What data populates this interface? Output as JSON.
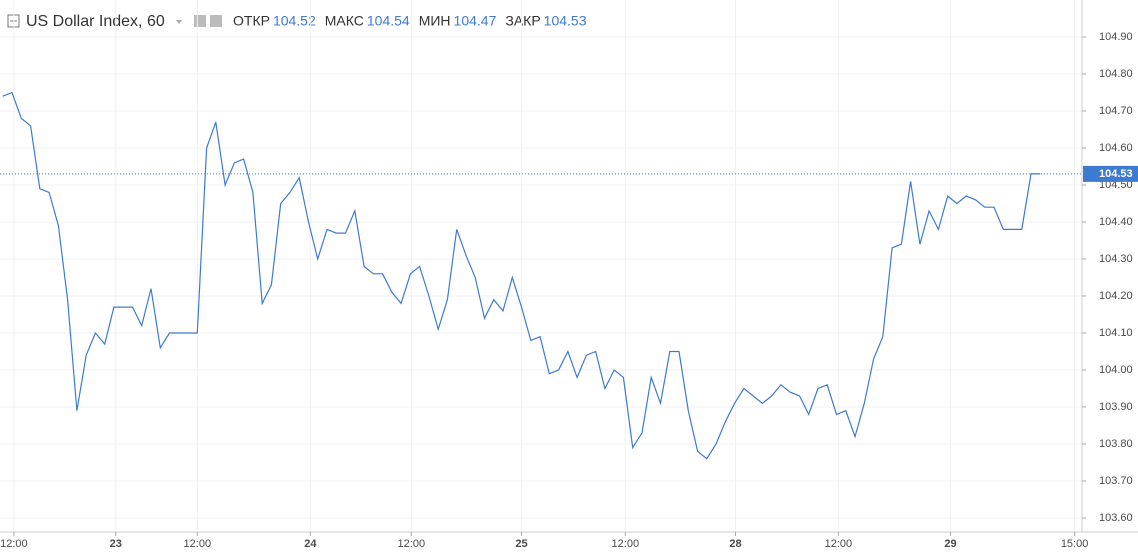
{
  "chart_data": {
    "type": "line",
    "title": "US Dollar Index, 60",
    "ohlc": [
      {
        "label": "ОТКР",
        "value": 104.52
      },
      {
        "label": "МАКС",
        "value": 104.54
      },
      {
        "label": "МИН",
        "value": 104.47
      },
      {
        "label": "ЗАКР",
        "value": 104.53
      }
    ],
    "last_price": 104.53,
    "color": "#3d7bd0",
    "values": [
      104.74,
      104.75,
      104.68,
      104.66,
      104.49,
      104.48,
      104.39,
      104.19,
      103.89,
      104.04,
      104.1,
      104.07,
      104.17,
      104.17,
      104.17,
      104.12,
      104.22,
      104.06,
      104.1,
      104.1,
      104.1,
      104.1,
      104.6,
      104.67,
      104.5,
      104.56,
      104.57,
      104.48,
      104.18,
      104.23,
      104.45,
      104.48,
      104.52,
      104.4,
      104.3,
      104.38,
      104.37,
      104.37,
      104.43,
      104.28,
      104.26,
      104.26,
      104.21,
      104.18,
      104.26,
      104.28,
      104.2,
      104.11,
      104.19,
      104.38,
      104.31,
      104.25,
      104.14,
      104.19,
      104.16,
      104.25,
      104.17,
      104.08,
      104.09,
      103.99,
      104.0,
      104.05,
      103.98,
      104.04,
      104.05,
      103.95,
      104.0,
      103.98,
      103.79,
      103.83,
      103.98,
      103.91,
      104.05,
      104.05,
      103.89,
      103.78,
      103.76,
      103.8,
      103.86,
      103.91,
      103.95,
      103.93,
      103.91,
      103.93,
      103.96,
      103.94,
      103.93,
      103.88,
      103.95,
      103.96,
      103.88,
      103.89,
      103.82,
      103.91,
      104.03,
      104.09,
      104.33,
      104.34,
      104.51,
      104.34,
      104.43,
      104.38,
      104.47,
      104.45,
      104.47,
      104.46,
      104.44,
      104.44,
      104.38,
      104.38,
      104.38,
      104.53,
      104.53
    ],
    "xlim": [
      -0.3,
      116.5
    ],
    "xticks": [
      {
        "value": 1.2,
        "label": "12:00"
      },
      {
        "value": 12.2,
        "label": "23"
      },
      {
        "value": 21,
        "label": "12:00"
      },
      {
        "value": 33.2,
        "label": "24"
      },
      {
        "value": 44.1,
        "label": "12:00"
      },
      {
        "value": 56,
        "label": "25"
      },
      {
        "value": 67.2,
        "label": "12:00"
      },
      {
        "value": 79.1,
        "label": "28"
      },
      {
        "value": 90.2,
        "label": "12:00"
      },
      {
        "value": 102.3,
        "label": "29"
      },
      {
        "value": 115.7,
        "label": "15:00"
      }
    ],
    "ylim": [
      103.562,
      105.0
    ],
    "yticks": [
      {
        "value": 103.6,
        "label": "103.60"
      },
      {
        "value": 103.7,
        "label": "103.70"
      },
      {
        "value": 103.8,
        "label": "103.80"
      },
      {
        "value": 103.9,
        "label": "103.90"
      },
      {
        "value": 104.0,
        "label": "104.00"
      },
      {
        "value": 104.1,
        "label": "104.10"
      },
      {
        "value": 104.2,
        "label": "104.20"
      },
      {
        "value": 104.3,
        "label": "104.30"
      },
      {
        "value": 104.4,
        "label": "104.40"
      },
      {
        "value": 104.5,
        "label": "104.50"
      },
      {
        "value": 104.6,
        "label": "104.60"
      },
      {
        "value": 104.7,
        "label": "104.70"
      },
      {
        "value": 104.8,
        "label": "104.80"
      },
      {
        "value": 104.9,
        "label": "104.90"
      }
    ],
    "grid": true
  }
}
